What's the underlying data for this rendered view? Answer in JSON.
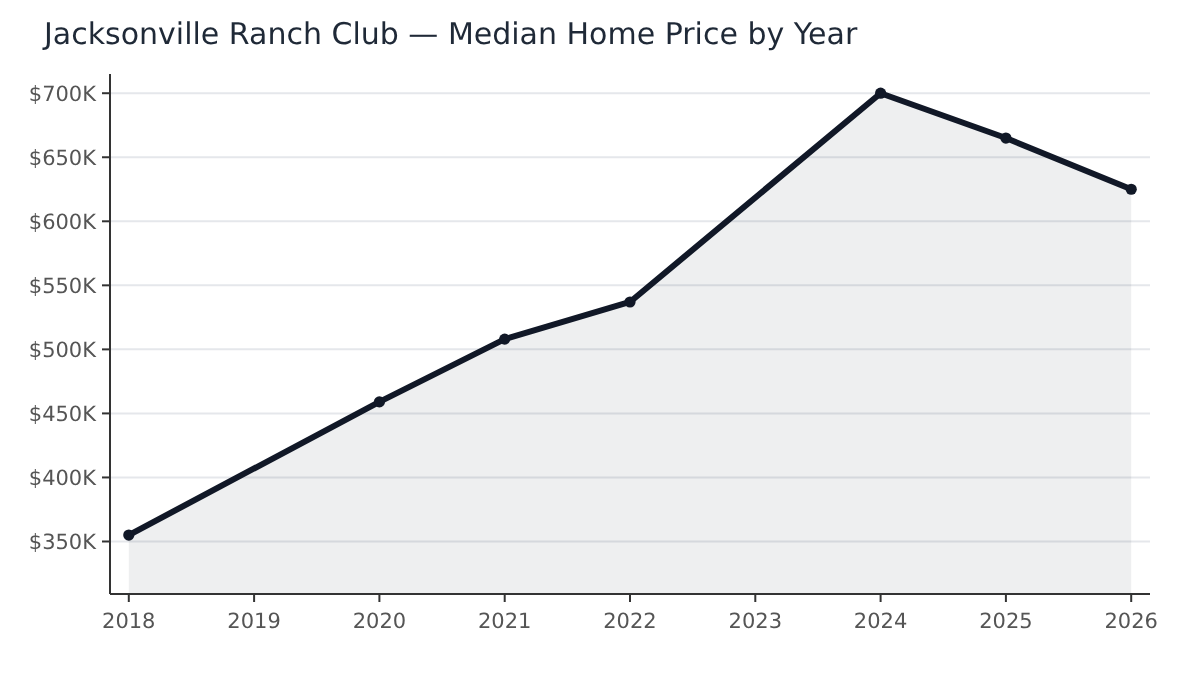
{
  "chart_data": {
    "type": "area",
    "title": "Jacksonville Ranch Club — Median Home Price by Year",
    "x": [
      2018,
      2020,
      2021,
      2022,
      2024,
      2025,
      2026
    ],
    "series": [
      {
        "color": "#111827",
        "values": [
          355000,
          459000,
          508000,
          537000,
          700000,
          665000,
          625000
        ]
      }
    ],
    "xlim": [
      2017.85,
      2026.15
    ],
    "xticks": [
      2018,
      2019,
      2020,
      2021,
      2022,
      2023,
      2024,
      2025,
      2026
    ],
    "ylim": [
      309000,
      715000
    ],
    "yticks": [
      {
        "value": 350000,
        "label": "$350K"
      },
      {
        "value": 400000,
        "label": "$400K"
      },
      {
        "value": 450000,
        "label": "$450K"
      },
      {
        "value": 500000,
        "label": "$500K"
      },
      {
        "value": 550000,
        "label": "$550K"
      },
      {
        "value": 600000,
        "label": "$600K"
      },
      {
        "value": 650000,
        "label": "$650K"
      },
      {
        "value": 700000,
        "label": "$700K"
      }
    ],
    "grid": "y",
    "marker": "circle",
    "line_style": "solid"
  }
}
